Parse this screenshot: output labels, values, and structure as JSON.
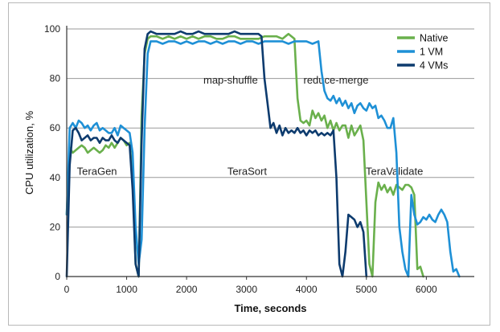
{
  "chart_data": {
    "type": "line",
    "xlabel": "Time, seconds",
    "ylabel": "CPU utilization, %",
    "xlim": [
      0,
      6800
    ],
    "ylim": [
      0,
      100
    ],
    "x_ticks": [
      0,
      1000,
      2000,
      3000,
      4000,
      5000,
      6000
    ],
    "y_ticks": [
      0,
      20,
      40,
      60,
      80,
      100
    ],
    "grid": "horizontal",
    "legend_position": "top-right",
    "annotations": [
      {
        "text": "TeraGen",
        "x": 170,
        "y": 41
      },
      {
        "text": "TeraSort",
        "x": 2680,
        "y": 41
      },
      {
        "text": "TeraValidate",
        "x": 4990,
        "y": 41
      },
      {
        "text": "map-shuffle",
        "x": 2280,
        "y": 78
      },
      {
        "text": "reduce-merge",
        "x": 3950,
        "y": 78
      }
    ],
    "series": [
      {
        "name": "Native",
        "color": "#6ab04c",
        "x": [
          0,
          50,
          100,
          150,
          200,
          250,
          300,
          350,
          400,
          450,
          500,
          550,
          600,
          650,
          700,
          750,
          800,
          850,
          900,
          950,
          1000,
          1050,
          1100,
          1150,
          1200,
          1250,
          1300,
          1350,
          1400,
          1500,
          1600,
          1700,
          1800,
          1900,
          2000,
          2100,
          2200,
          2300,
          2400,
          2500,
          2600,
          2700,
          2800,
          2900,
          3000,
          3100,
          3200,
          3300,
          3400,
          3500,
          3600,
          3650,
          3700,
          3750,
          3800,
          3850,
          3900,
          3950,
          4000,
          4050,
          4100,
          4150,
          4200,
          4250,
          4300,
          4350,
          4400,
          4450,
          4500,
          4550,
          4600,
          4650,
          4700,
          4750,
          4800,
          4850,
          4900,
          4950,
          5000,
          5050,
          5100,
          5150,
          5200,
          5250,
          5300,
          5350,
          5400,
          5450,
          5500,
          5550,
          5600,
          5650,
          5700,
          5750,
          5800,
          5850,
          5900,
          5950
        ],
        "values": [
          25,
          52,
          50,
          51,
          52,
          53,
          52,
          50,
          51,
          52,
          51,
          50,
          51,
          53,
          52,
          54,
          52,
          54,
          56,
          55,
          53,
          54,
          40,
          5,
          0,
          65,
          90,
          96,
          97,
          97,
          96,
          97,
          96,
          97,
          96,
          97,
          96,
          97,
          97,
          96,
          96,
          97,
          97,
          96,
          96,
          96,
          96,
          97,
          97,
          97,
          96,
          97,
          98,
          97,
          96,
          72,
          63,
          62,
          63,
          61,
          67,
          64,
          66,
          63,
          65,
          60,
          63,
          59,
          62,
          59,
          61,
          61,
          56,
          61,
          57,
          59,
          61,
          55,
          30,
          5,
          0,
          30,
          38,
          35,
          37,
          34,
          36,
          33,
          37,
          36,
          35,
          37,
          37,
          36,
          33,
          3,
          4,
          0
        ]
      },
      {
        "name": "1 VM",
        "color": "#1e90d6",
        "x": [
          0,
          50,
          100,
          150,
          200,
          250,
          300,
          350,
          400,
          450,
          500,
          550,
          600,
          650,
          700,
          750,
          800,
          850,
          900,
          950,
          1000,
          1050,
          1100,
          1150,
          1200,
          1250,
          1300,
          1350,
          1400,
          1500,
          1600,
          1700,
          1800,
          1900,
          2000,
          2100,
          2200,
          2300,
          2400,
          2500,
          2600,
          2700,
          2800,
          2900,
          3000,
          3100,
          3200,
          3300,
          3400,
          3500,
          3600,
          3700,
          3800,
          3900,
          4000,
          4100,
          4200,
          4250,
          4300,
          4350,
          4400,
          4450,
          4500,
          4550,
          4600,
          4650,
          4700,
          4750,
          4800,
          4850,
          4900,
          4950,
          5000,
          5050,
          5100,
          5150,
          5200,
          5250,
          5300,
          5350,
          5400,
          5450,
          5500,
          5550,
          5600,
          5650,
          5700,
          5750,
          5800,
          5850,
          5900,
          5950,
          6000,
          6050,
          6100,
          6150,
          6200,
          6250,
          6300,
          6350,
          6400,
          6450,
          6500,
          6550
        ],
        "values": [
          25,
          60,
          62,
          60,
          63,
          62,
          60,
          61,
          59,
          61,
          62,
          59,
          60,
          59,
          58,
          58,
          60,
          57,
          61,
          60,
          59,
          58,
          50,
          20,
          5,
          15,
          60,
          90,
          95,
          95,
          94,
          95,
          95,
          94,
          95,
          94,
          95,
          95,
          94,
          95,
          94,
          95,
          95,
          94,
          95,
          95,
          94,
          95,
          95,
          95,
          95,
          94,
          95,
          95,
          95,
          94,
          95,
          83,
          75,
          72,
          71,
          73,
          70,
          72,
          69,
          71,
          68,
          70,
          66,
          69,
          70,
          68,
          67,
          70,
          68,
          69,
          64,
          65,
          63,
          60,
          60,
          64,
          50,
          20,
          10,
          3,
          0,
          33,
          25,
          21,
          22,
          24,
          23,
          25,
          23,
          22,
          25,
          27,
          25,
          22,
          10,
          2,
          3,
          0
        ]
      },
      {
        "name": "4 VMs",
        "color": "#0d3b6e",
        "x": [
          0,
          50,
          100,
          150,
          200,
          250,
          300,
          350,
          400,
          450,
          500,
          550,
          600,
          650,
          700,
          750,
          800,
          850,
          900,
          950,
          1000,
          1050,
          1100,
          1150,
          1200,
          1250,
          1300,
          1350,
          1400,
          1500,
          1600,
          1700,
          1800,
          1900,
          2000,
          2100,
          2200,
          2300,
          2400,
          2500,
          2600,
          2700,
          2800,
          2900,
          3000,
          3100,
          3200,
          3250,
          3300,
          3350,
          3400,
          3450,
          3500,
          3550,
          3600,
          3650,
          3700,
          3750,
          3800,
          3850,
          3900,
          3950,
          4000,
          4050,
          4100,
          4150,
          4200,
          4250,
          4300,
          4350,
          4400,
          4450,
          4500,
          4550,
          4600,
          4650,
          4700,
          4750,
          4800,
          4850,
          4900,
          4950,
          5000
        ],
        "values": [
          0,
          45,
          59,
          60,
          58,
          55,
          56,
          57,
          55,
          56,
          56,
          54,
          56,
          55,
          55,
          57,
          55,
          54,
          56,
          55,
          54,
          53,
          35,
          5,
          0,
          55,
          92,
          98,
          99,
          98,
          98,
          98,
          98,
          99,
          98,
          98,
          99,
          98,
          98,
          98,
          98,
          98,
          99,
          98,
          98,
          98,
          98,
          97,
          80,
          70,
          60,
          62,
          58,
          61,
          57,
          60,
          58,
          59,
          58,
          60,
          58,
          59,
          57,
          59,
          58,
          59,
          57,
          58,
          57,
          58,
          57,
          59,
          40,
          5,
          0,
          10,
          25,
          24,
          23,
          20,
          22,
          18,
          0
        ]
      }
    ]
  }
}
